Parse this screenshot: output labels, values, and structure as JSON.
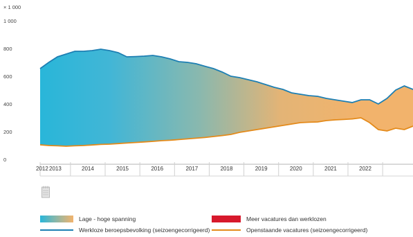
{
  "chart_data": {
    "type": "area",
    "unit_label": "× 1 000",
    "ylim": [
      0,
      1000
    ],
    "y_ticks": [
      "0",
      "200",
      "400",
      "600",
      "800",
      "1 000"
    ],
    "x_start_label": "2012",
    "x_tick_labels": [
      "2013",
      "2014",
      "2015",
      "2016",
      "2017",
      "2018",
      "2019",
      "2020",
      "2021",
      "2022"
    ],
    "x": [
      "2012 Q1",
      "2012 Q2",
      "2012 Q3",
      "2012 Q4",
      "2013 Q1",
      "2013 Q2",
      "2013 Q3",
      "2013 Q4",
      "2014 Q1",
      "2014 Q2",
      "2014 Q3",
      "2014 Q4",
      "2015 Q1",
      "2015 Q2",
      "2015 Q3",
      "2015 Q4",
      "2016 Q1",
      "2016 Q2",
      "2016 Q3",
      "2016 Q4",
      "2017 Q1",
      "2017 Q2",
      "2017 Q3",
      "2017 Q4",
      "2018 Q1",
      "2018 Q2",
      "2018 Q3",
      "2018 Q4",
      "2019 Q1",
      "2019 Q2",
      "2019 Q3",
      "2019 Q4",
      "2020 Q1",
      "2020 Q2",
      "2020 Q3",
      "2020 Q4",
      "2021 Q1",
      "2021 Q2",
      "2021 Q3",
      "2021 Q4",
      "2022 Q1",
      "2022 Q2",
      "2022 Q3",
      "2022 Q4"
    ],
    "series": [
      {
        "name": "Werkloze beroepsbevolking (seizoengecorrigeerd)",
        "color": "#1d7fb3",
        "values": [
          655,
          700,
          740,
          760,
          780,
          780,
          785,
          795,
          785,
          770,
          740,
          742,
          745,
          750,
          740,
          725,
          705,
          700,
          690,
          672,
          655,
          630,
          600,
          590,
          575,
          560,
          540,
          520,
          505,
          480,
          470,
          460,
          455,
          440,
          430,
          420,
          410,
          430,
          430,
          400,
          440,
          500,
          530,
          505
        ]
      },
      {
        "name": "Openstaande vacatures (seizoengecorrigeerd)",
        "color": "#e48a1a",
        "values": [
          105,
          100,
          98,
          95,
          98,
          100,
          104,
          108,
          110,
          114,
          118,
          122,
          126,
          130,
          135,
          138,
          143,
          148,
          153,
          158,
          165,
          172,
          180,
          195,
          205,
          215,
          225,
          235,
          245,
          255,
          265,
          268,
          270,
          280,
          285,
          288,
          292,
          300,
          265,
          215,
          205,
          225,
          215,
          240
        ]
      }
    ],
    "legend": [
      {
        "label": "Lage - hoge spanning",
        "color": "#29b6d9",
        "color2": "#f2b36c"
      },
      {
        "label": "Meer vacatures dan werklozen",
        "color": "#d7192c"
      },
      {
        "label": "Werkloze beroepsbevolking (seizoengecorrigeerd)",
        "color": "#1d7fb3"
      },
      {
        "label": "Openstaande vacatures (seizoengecorrigeerd)",
        "color": "#e48a1a"
      }
    ],
    "legend_placement": "bottom",
    "grid": false
  },
  "toolbar": {
    "icon": "data-table-icon"
  }
}
